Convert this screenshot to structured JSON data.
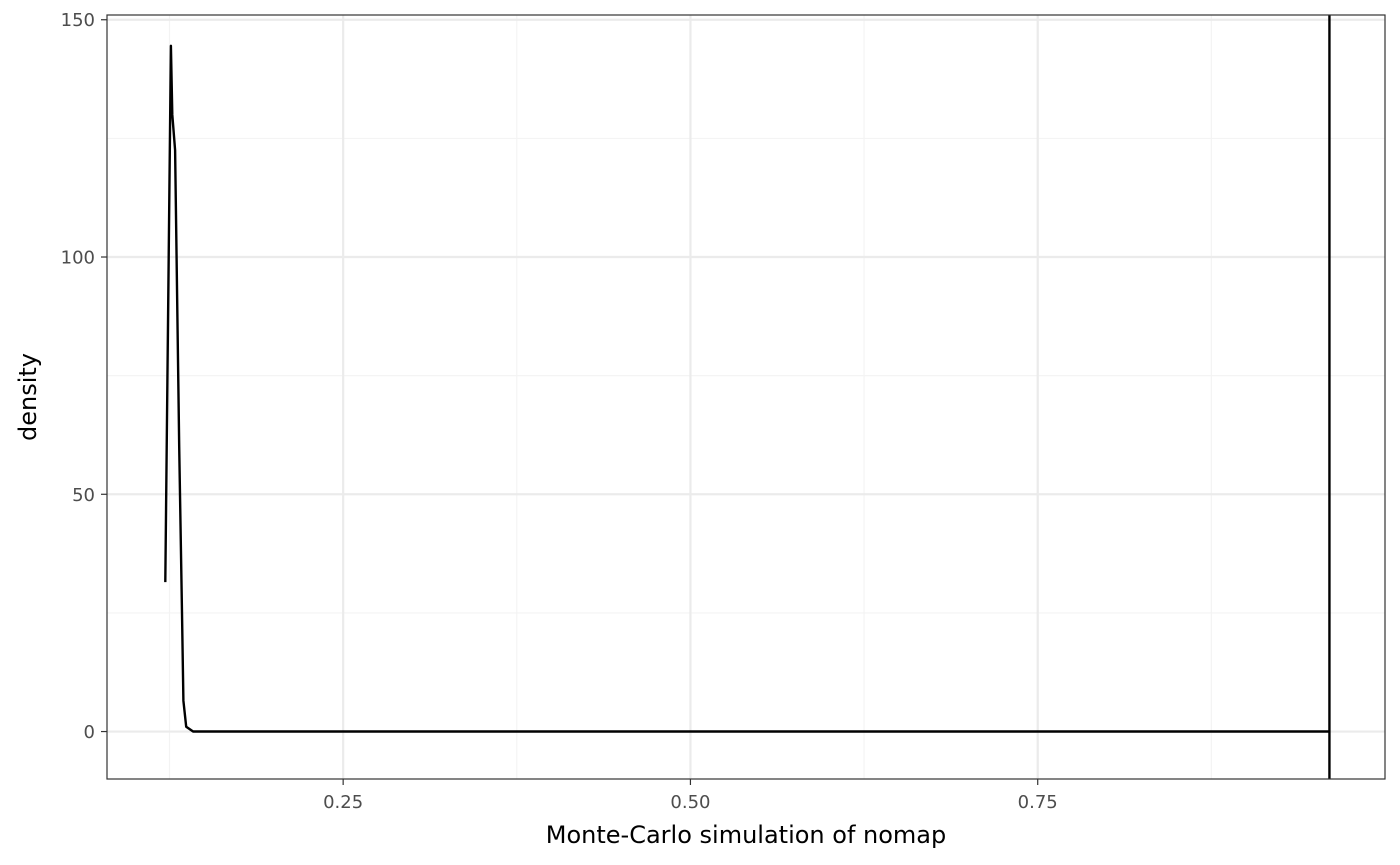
{
  "chart_data": {
    "type": "line",
    "title": "",
    "xlabel": "Monte-Carlo simulation of nomap",
    "ylabel": "density",
    "xlim": [
      0.08,
      1.0
    ],
    "ylim": [
      -10,
      151
    ],
    "grid": true,
    "x_ticks": [
      {
        "value": 0.25,
        "label": "0.25"
      },
      {
        "value": 0.5,
        "label": "0.50"
      },
      {
        "value": 0.75,
        "label": "0.75"
      }
    ],
    "x_minor_ticks": [
      0.125,
      0.375,
      0.625,
      0.875
    ],
    "y_ticks": [
      {
        "value": 0,
        "label": "0"
      },
      {
        "value": 50,
        "label": "50"
      },
      {
        "value": 100,
        "label": "100"
      },
      {
        "value": 150,
        "label": "150"
      }
    ],
    "y_minor_ticks": [
      25,
      75,
      125
    ],
    "series": [
      {
        "x": [
          0.122,
          0.126,
          0.127,
          0.129,
          0.132,
          0.134,
          0.135,
          0.137,
          0.142,
          0.15,
          0.2,
          0.3,
          0.5,
          0.7,
          0.9,
          0.96
        ],
        "y": [
          31.5,
          144.5,
          130,
          122.5,
          60,
          25,
          6.5,
          1.0,
          0,
          0,
          0,
          0,
          0,
          0,
          0,
          0
        ]
      }
    ],
    "vlines": [
      0.96
    ],
    "colors": {
      "line": "#000000",
      "grid_major": "#ebebeb",
      "grid_minor": "#f3f3f3",
      "panel_border": "#333333",
      "tick_text": "#4d4d4d"
    }
  }
}
